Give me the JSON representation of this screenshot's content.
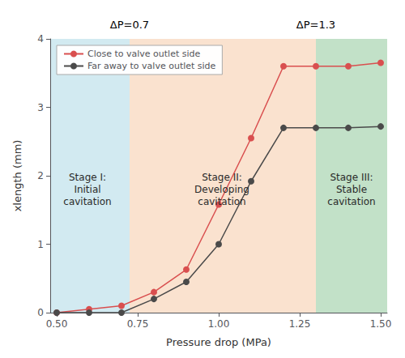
{
  "chart_data": {
    "type": "line",
    "x": [
      0.5,
      0.6,
      0.7,
      0.8,
      0.9,
      1.0,
      1.1,
      1.2,
      1.3,
      1.4,
      1.5
    ],
    "series": [
      {
        "name": "Close to valve outlet side",
        "color": "#d94f4f",
        "marker": "circle",
        "values": [
          0.0,
          0.05,
          0.1,
          0.3,
          0.63,
          1.58,
          2.55,
          3.6,
          3.6,
          3.6,
          3.65
        ]
      },
      {
        "name": "Far away to valve outlet side",
        "color": "#4a4a4a",
        "marker": "circle",
        "values": [
          0.0,
          0.0,
          0.0,
          0.2,
          0.45,
          1.0,
          1.92,
          2.7,
          2.7,
          2.7,
          2.72
        ]
      }
    ],
    "xlabel": "Pressure drop (MPa)",
    "ylabel": "xlength (mm)",
    "xlim": [
      0.48,
      1.52
    ],
    "ylim": [
      0.0,
      4.0
    ],
    "xticks": [
      {
        "value": 0.5,
        "label": "0.50"
      },
      {
        "value": 0.75,
        "label": "0.75"
      },
      {
        "value": 1.0,
        "label": "1.00"
      },
      {
        "value": 1.25,
        "label": "1.25"
      },
      {
        "value": 1.5,
        "label": "1.50"
      }
    ],
    "yticks": [
      0,
      1,
      2,
      3,
      4
    ],
    "grid": false,
    "legend": "upper left",
    "regions": [
      {
        "x": [
          0.48,
          0.725
        ],
        "color": "#add8e6"
      },
      {
        "x": [
          0.725,
          1.3
        ],
        "color": "#f5cba7"
      },
      {
        "x": [
          1.3,
          1.52
        ],
        "color": "#90c99a"
      }
    ],
    "annotations": [
      {
        "text": "Stage I:\nInitial\ncavitation",
        "x": 0.595,
        "y": 1.8
      },
      {
        "text": "Stage II:\nDeveloping\ncavitation",
        "x": 1.01,
        "y": 1.8
      },
      {
        "text": "Stage III:\nStable\ncavitation",
        "x": 1.41,
        "y": 1.8
      },
      {
        "text": "ΔP=0.7",
        "x": 0.725,
        "position": "above"
      },
      {
        "text": "ΔP=1.3",
        "x": 1.3,
        "position": "above"
      }
    ]
  }
}
